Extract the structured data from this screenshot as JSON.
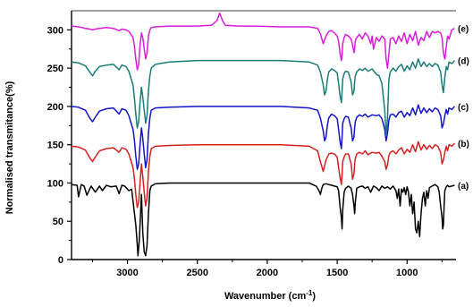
{
  "chart_data": {
    "type": "line",
    "xlabel": "Wavenumber (cm",
    "xlabel_sup": "-1",
    "xlabel_end": ")",
    "ylabel": "Normalised transmitance(%)",
    "xlim": [
      3400,
      650
    ],
    "ylim": [
      0,
      325
    ],
    "x_reversed": true,
    "x_ticks": [
      3000,
      2500,
      2000,
      1500,
      1000
    ],
    "x_tick_labels": [
      "3000",
      "2500",
      "2000",
      "1500",
      "1000"
    ],
    "y_ticks": [
      0,
      50,
      100,
      150,
      200,
      250,
      300
    ],
    "y_tick_labels": [
      "0",
      "50",
      "100",
      "150",
      "200",
      "250",
      "300"
    ],
    "grid": false,
    "series": [
      {
        "name": "(a)",
        "color": "#000000",
        "x": [
          3400,
          3360,
          3350,
          3330,
          3310,
          3290,
          3260,
          3230,
          3200,
          3180,
          3150,
          3120,
          3080,
          3060,
          3040,
          3020,
          2990,
          2970,
          2950,
          2940,
          2930,
          2925,
          2915,
          2900,
          2890,
          2880,
          2870,
          2860,
          2850,
          2840,
          2830,
          2800,
          2700,
          2600,
          2400,
          2200,
          2000,
          1800,
          1700,
          1650,
          1630,
          1620,
          1610,
          1600,
          1580,
          1560,
          1540,
          1520,
          1500,
          1490,
          1480,
          1470,
          1465,
          1460,
          1450,
          1440,
          1420,
          1400,
          1390,
          1380,
          1375,
          1370,
          1360,
          1340,
          1320,
          1300,
          1280,
          1260,
          1240,
          1220,
          1200,
          1180,
          1160,
          1140,
          1120,
          1100,
          1080,
          1070,
          1060,
          1050,
          1040,
          1030,
          1020,
          1010,
          1000,
          990,
          980,
          970,
          960,
          950,
          940,
          930,
          920,
          910,
          900,
          890,
          880,
          870,
          860,
          850,
          840,
          820,
          800,
          780,
          770,
          760,
          750,
          745,
          740,
          735,
          730,
          720,
          710,
          700,
          680,
          660
        ],
        "y": [
          98,
          97,
          82,
          98,
          96,
          84,
          96,
          88,
          96,
          90,
          97,
          95,
          96,
          86,
          97,
          96,
          90,
          92,
          60,
          45,
          20,
          5,
          25,
          85,
          35,
          10,
          5,
          18,
          60,
          90,
          96,
          99,
          100,
          100,
          100,
          100,
          100,
          100,
          100,
          96,
          90,
          85,
          93,
          98,
          99,
          98,
          97,
          96,
          95,
          90,
          70,
          55,
          40,
          65,
          88,
          93,
          96,
          93,
          85,
          70,
          60,
          75,
          93,
          95,
          96,
          93,
          95,
          88,
          96,
          94,
          90,
          96,
          93,
          95,
          92,
          96,
          90,
          80,
          92,
          70,
          92,
          88,
          94,
          85,
          95,
          88,
          70,
          85,
          60,
          75,
          40,
          35,
          50,
          30,
          60,
          80,
          88,
          70,
          90,
          80,
          94,
          96,
          98,
          95,
          88,
          70,
          55,
          40,
          45,
          70,
          90,
          95,
          97,
          95,
          96,
          97
        ]
      },
      {
        "name": "(b)",
        "color": "#d62020",
        "x": [
          3400,
          3350,
          3300,
          3270,
          3250,
          3230,
          3200,
          3150,
          3100,
          3060,
          3040,
          3010,
          2990,
          2960,
          2950,
          2940,
          2930,
          2920,
          2910,
          2900,
          2890,
          2880,
          2870,
          2860,
          2850,
          2840,
          2830,
          2800,
          2700,
          2500,
          2300,
          2100,
          1900,
          1700,
          1640,
          1620,
          1600,
          1580,
          1560,
          1540,
          1520,
          1500,
          1490,
          1480,
          1470,
          1465,
          1460,
          1450,
          1440,
          1420,
          1400,
          1390,
          1380,
          1375,
          1370,
          1360,
          1340,
          1320,
          1300,
          1280,
          1250,
          1220,
          1200,
          1180,
          1160,
          1150,
          1140,
          1130,
          1120,
          1100,
          1080,
          1060,
          1040,
          1020,
          1000,
          980,
          960,
          940,
          920,
          900,
          880,
          860,
          840,
          820,
          800,
          780,
          760,
          750,
          740,
          730,
          720,
          710,
          700,
          680,
          660
        ],
        "y": [
          148,
          147,
          143,
          133,
          128,
          134,
          142,
          145,
          146,
          140,
          146,
          144,
          138,
          120,
          105,
          85,
          68,
          75,
          100,
          125,
          108,
          88,
          70,
          80,
          115,
          135,
          145,
          148,
          149,
          150,
          150,
          150,
          150,
          148,
          142,
          128,
          115,
          130,
          138,
          139,
          138,
          134,
          120,
          108,
          98,
          112,
          128,
          134,
          138,
          138,
          125,
          105,
          112,
          125,
          132,
          138,
          140,
          138,
          142,
          137,
          140,
          139,
          140,
          135,
          128,
          118,
          124,
          136,
          140,
          142,
          138,
          143,
          146,
          138,
          144,
          140,
          150,
          141,
          154,
          143,
          150,
          144,
          149,
          145,
          150,
          148,
          140,
          125,
          130,
          140,
          148,
          142,
          150,
          148,
          152
        ]
      },
      {
        "name": "(c)",
        "color": "#1313c8",
        "x": [
          3400,
          3350,
          3300,
          3270,
          3250,
          3230,
          3200,
          3150,
          3100,
          3060,
          3040,
          3010,
          2990,
          2960,
          2950,
          2940,
          2930,
          2920,
          2910,
          2900,
          2890,
          2880,
          2870,
          2860,
          2850,
          2840,
          2830,
          2800,
          2700,
          2500,
          2300,
          2100,
          1900,
          1700,
          1640,
          1620,
          1600,
          1590,
          1580,
          1570,
          1560,
          1540,
          1520,
          1500,
          1490,
          1480,
          1470,
          1465,
          1460,
          1450,
          1440,
          1420,
          1400,
          1390,
          1380,
          1375,
          1370,
          1360,
          1340,
          1320,
          1300,
          1280,
          1250,
          1220,
          1200,
          1180,
          1160,
          1150,
          1140,
          1130,
          1120,
          1100,
          1080,
          1060,
          1040,
          1020,
          1000,
          980,
          960,
          940,
          920,
          900,
          880,
          860,
          840,
          820,
          800,
          780,
          760,
          750,
          740,
          730,
          720,
          710,
          700,
          680,
          660
        ],
        "y": [
          200,
          199,
          195,
          185,
          180,
          186,
          194,
          197,
          198,
          190,
          197,
          195,
          188,
          170,
          155,
          135,
          118,
          125,
          150,
          172,
          158,
          138,
          120,
          130,
          165,
          185,
          195,
          198,
          199,
          200,
          200,
          200,
          200,
          198,
          195,
          185,
          168,
          155,
          160,
          175,
          185,
          190,
          188,
          184,
          170,
          155,
          145,
          160,
          178,
          184,
          187,
          186,
          172,
          155,
          160,
          172,
          180,
          186,
          189,
          187,
          190,
          186,
          189,
          188,
          189,
          184,
          170,
          155,
          165,
          182,
          189,
          190,
          186,
          192,
          194,
          186,
          192,
          188,
          198,
          189,
          202,
          191,
          198,
          192,
          197,
          193,
          198,
          196,
          188,
          172,
          177,
          188,
          196,
          190,
          198,
          196,
          200
        ]
      },
      {
        "name": "(d)",
        "color": "#1a7b7b",
        "x": [
          3400,
          3350,
          3300,
          3270,
          3250,
          3230,
          3200,
          3150,
          3100,
          3060,
          3040,
          3010,
          2990,
          2960,
          2950,
          2940,
          2930,
          2920,
          2910,
          2900,
          2890,
          2880,
          2870,
          2860,
          2850,
          2840,
          2830,
          2800,
          2700,
          2500,
          2300,
          2100,
          1900,
          1700,
          1640,
          1620,
          1600,
          1590,
          1580,
          1570,
          1560,
          1540,
          1520,
          1500,
          1490,
          1480,
          1470,
          1465,
          1460,
          1450,
          1440,
          1420,
          1400,
          1390,
          1380,
          1375,
          1370,
          1360,
          1340,
          1320,
          1300,
          1280,
          1250,
          1220,
          1200,
          1180,
          1160,
          1150,
          1140,
          1130,
          1120,
          1100,
          1080,
          1060,
          1040,
          1020,
          1000,
          980,
          960,
          940,
          920,
          900,
          880,
          860,
          840,
          820,
          800,
          780,
          760,
          750,
          740,
          730,
          720,
          710,
          700,
          680,
          660
        ],
        "y": [
          258,
          257,
          253,
          245,
          240,
          246,
          252,
          254,
          255,
          248,
          254,
          252,
          246,
          228,
          210,
          190,
          172,
          180,
          205,
          225,
          212,
          195,
          178,
          188,
          220,
          240,
          250,
          255,
          258,
          260,
          260,
          260,
          260,
          258,
          254,
          245,
          228,
          215,
          220,
          235,
          245,
          249,
          247,
          244,
          230,
          215,
          205,
          220,
          236,
          243,
          246,
          245,
          232,
          215,
          220,
          232,
          240,
          245,
          249,
          247,
          250,
          246,
          249,
          242,
          240,
          230,
          195,
          162,
          185,
          235,
          245,
          250,
          246,
          252,
          255,
          246,
          253,
          248,
          258,
          250,
          262,
          252,
          258,
          252,
          256,
          252,
          256,
          254,
          245,
          228,
          218,
          238,
          252,
          248,
          258,
          256,
          260
        ]
      },
      {
        "name": "(e)",
        "color": "#d81cd8",
        "x": [
          3400,
          3350,
          3300,
          3270,
          3250,
          3230,
          3200,
          3150,
          3100,
          3060,
          3040,
          3010,
          2990,
          2960,
          2950,
          2940,
          2930,
          2920,
          2910,
          2900,
          2890,
          2880,
          2870,
          2860,
          2850,
          2840,
          2830,
          2800,
          2700,
          2500,
          2400,
          2360,
          2340,
          2320,
          2300,
          2200,
          2100,
          1900,
          1700,
          1640,
          1620,
          1600,
          1580,
          1560,
          1540,
          1520,
          1500,
          1490,
          1480,
          1470,
          1465,
          1460,
          1450,
          1440,
          1420,
          1400,
          1390,
          1380,
          1375,
          1370,
          1360,
          1340,
          1320,
          1300,
          1280,
          1260,
          1250,
          1240,
          1220,
          1200,
          1180,
          1160,
          1150,
          1140,
          1130,
          1120,
          1100,
          1080,
          1060,
          1040,
          1020,
          1000,
          980,
          960,
          940,
          920,
          900,
          880,
          860,
          840,
          820,
          800,
          780,
          760,
          750,
          740,
          730,
          720,
          710,
          700,
          680,
          660
        ],
        "y": [
          305,
          304,
          302,
          301,
          300,
          301,
          302,
          303,
          302,
          299,
          301,
          300,
          298,
          290,
          278,
          262,
          248,
          255,
          280,
          296,
          290,
          275,
          262,
          270,
          292,
          300,
          303,
          304,
          305,
          305,
          306,
          312,
          322,
          312,
          306,
          305,
          305,
          304,
          304,
          302,
          295,
          282,
          292,
          298,
          299,
          296,
          292,
          285,
          270,
          260,
          268,
          282,
          290,
          294,
          292,
          288,
          280,
          270,
          275,
          286,
          290,
          294,
          288,
          296,
          292,
          282,
          292,
          275,
          290,
          285,
          292,
          288,
          262,
          250,
          268,
          288,
          290,
          282,
          292,
          285,
          296,
          282,
          294,
          286,
          298,
          280,
          290,
          286,
          298,
          290,
          298,
          296,
          298,
          296,
          290,
          270,
          262,
          278,
          292,
          288,
          300,
          302
        ]
      }
    ]
  }
}
